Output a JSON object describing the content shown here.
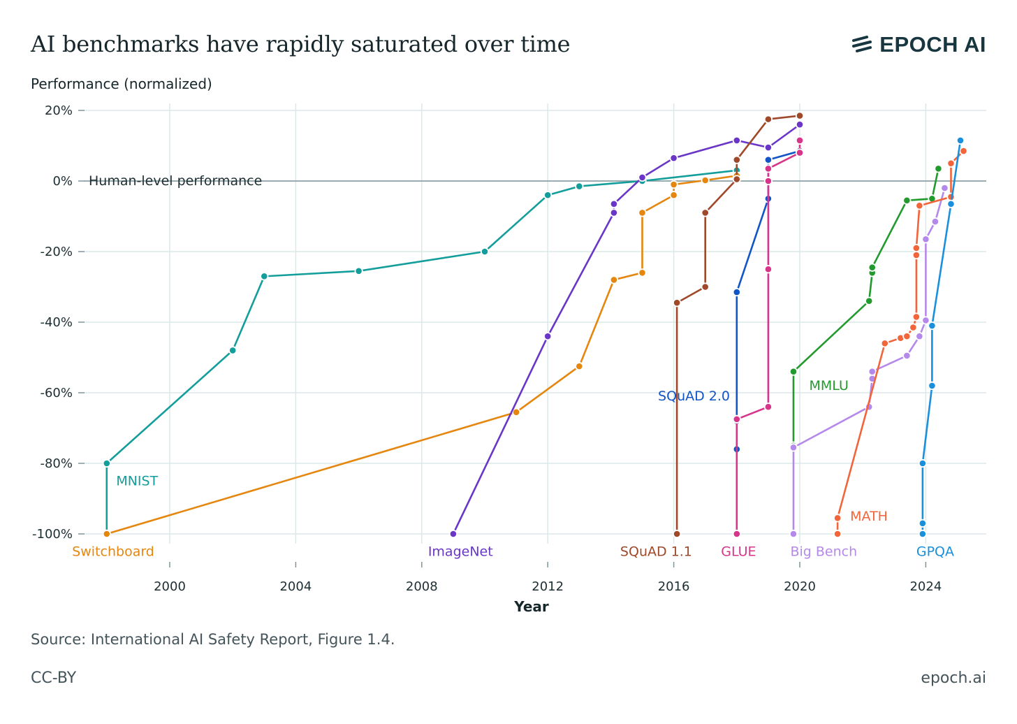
{
  "title": "AI benchmarks have rapidly saturated over time",
  "logo": {
    "text": "EPOCH AI",
    "icon": "epoch-stripes-icon"
  },
  "footer": {
    "source": "Source: International AI Safety Report, Figure 1.4.",
    "license": "CC-BY",
    "site": "epoch.ai"
  },
  "chart_data": {
    "type": "line",
    "title": "AI benchmarks have rapidly saturated over time",
    "xlabel": "Year",
    "ylabel": "Performance (normalized)",
    "xlim": [
      1996.8,
      2026.2
    ],
    "ylim": [
      -100,
      20
    ],
    "x_ticks": [
      2000,
      2004,
      2008,
      2012,
      2016,
      2020,
      2024
    ],
    "x_tick_labels": [
      "2000",
      "2004",
      "2008",
      "2012",
      "2016",
      "2020",
      "2024"
    ],
    "y_ticks": [
      20,
      0,
      -20,
      -40,
      -60,
      -80,
      -100
    ],
    "y_tick_labels": [
      "20%",
      "0%",
      "-20%",
      "-40%",
      "-60%",
      "-80%",
      "-100%"
    ],
    "grid": true,
    "reference_line": {
      "y": 0,
      "label": "Human-level performance",
      "color": "#7f949a"
    },
    "series": [
      {
        "name": "MNIST",
        "color": "#139e9c",
        "label_at": [
          1998.3,
          -85
        ],
        "x": [
          1998,
          1998,
          2002,
          2003,
          2006,
          2010,
          2012,
          2013,
          2015,
          2018
        ],
        "y": [
          -100,
          -80,
          -48,
          -27,
          -25.5,
          -20,
          -4,
          -1.5,
          0,
          3
        ]
      },
      {
        "name": "Switchboard",
        "color": "#e5870f",
        "label_at": [
          1996.9,
          -105
        ],
        "x": [
          1998,
          2011,
          2013,
          2014.1,
          2015,
          2015,
          2016,
          2016,
          2017,
          2018
        ],
        "y": [
          -100,
          -65.5,
          -52.5,
          -28,
          -26,
          -9,
          -4,
          -1,
          0.2,
          1.5
        ]
      },
      {
        "name": "ImageNet",
        "color": "#6a36c7",
        "label_at": [
          2008.2,
          -105
        ],
        "x": [
          2009,
          2012,
          2014.1,
          2014.1,
          2015,
          2016,
          2018,
          2019,
          2020,
          2020
        ],
        "y": [
          -100,
          -44,
          -9,
          -6.5,
          1,
          6.5,
          11.5,
          9.5,
          16,
          16
        ]
      },
      {
        "name": "SQuAD 1.1",
        "color": "#a0492a",
        "label_at": [
          2014.3,
          -105
        ],
        "x": [
          2016.1,
          2016.1,
          2017,
          2017,
          2018,
          2018,
          2019,
          2020
        ],
        "y": [
          -100,
          -34.5,
          -30,
          -9,
          0.5,
          6,
          17.5,
          18.5
        ]
      },
      {
        "name": "SQuAD 2.0",
        "color": "#1155c7",
        "label_at": [
          2015.5,
          -61
        ],
        "x": [
          2018,
          2018,
          2018,
          2019,
          2019,
          2020
        ],
        "y": [
          -76,
          -68,
          -31.5,
          -5,
          6,
          8.5
        ]
      },
      {
        "name": "GLUE",
        "color": "#d6358a",
        "label_at": [
          2017.5,
          -105
        ],
        "x": [
          2018,
          2018,
          2019,
          2019,
          2019,
          2019,
          2020,
          2020
        ],
        "y": [
          -100,
          -67.5,
          -64,
          -25,
          0,
          3.5,
          8,
          11.5
        ]
      },
      {
        "name": "MMLU",
        "color": "#239a2e",
        "label_at": [
          2020.3,
          -58
        ],
        "x": [
          2019.8,
          2019.8,
          2022.2,
          2022.3,
          2022.3,
          2023.4,
          2024.2,
          2024.4
        ],
        "y": [
          -75,
          -54,
          -34,
          -26,
          -24.5,
          -5.5,
          -5,
          3.5
        ]
      },
      {
        "name": "Big Bench",
        "color": "#b589ec",
        "label_at": [
          2019.7,
          -105
        ],
        "x": [
          2019.8,
          2019.8,
          2022.2,
          2022.3,
          2022.3,
          2023.4,
          2023.8,
          2024,
          2024,
          2024.3,
          2024.6
        ],
        "y": [
          -100,
          -75.5,
          -64,
          -56,
          -54,
          -49.5,
          -44,
          -39.5,
          -16.5,
          -11.5,
          -2
        ]
      },
      {
        "name": "MATH",
        "color": "#f2643a",
        "label_at": [
          2021.6,
          -95
        ],
        "x": [
          2021.2,
          2021.2,
          2022.7,
          2023.2,
          2023.4,
          2023.6,
          2023.7,
          2023.7,
          2023.7,
          2023.8,
          2024.8,
          2024.8,
          2025.2
        ],
        "y": [
          -100,
          -95.5,
          -46,
          -44.5,
          -44,
          -41.5,
          -38.5,
          -21,
          -19,
          -7,
          -4.5,
          5,
          8.5
        ]
      },
      {
        "name": "GPQA",
        "color": "#1a90dc",
        "label_at": [
          2023.7,
          -105
        ],
        "x": [
          2023.9,
          2023.9,
          2023.9,
          2024.2,
          2024.2,
          2024.8,
          2025.1
        ],
        "y": [
          -100,
          -97,
          -80,
          -58,
          -41,
          -6.5,
          11.5
        ]
      }
    ]
  }
}
